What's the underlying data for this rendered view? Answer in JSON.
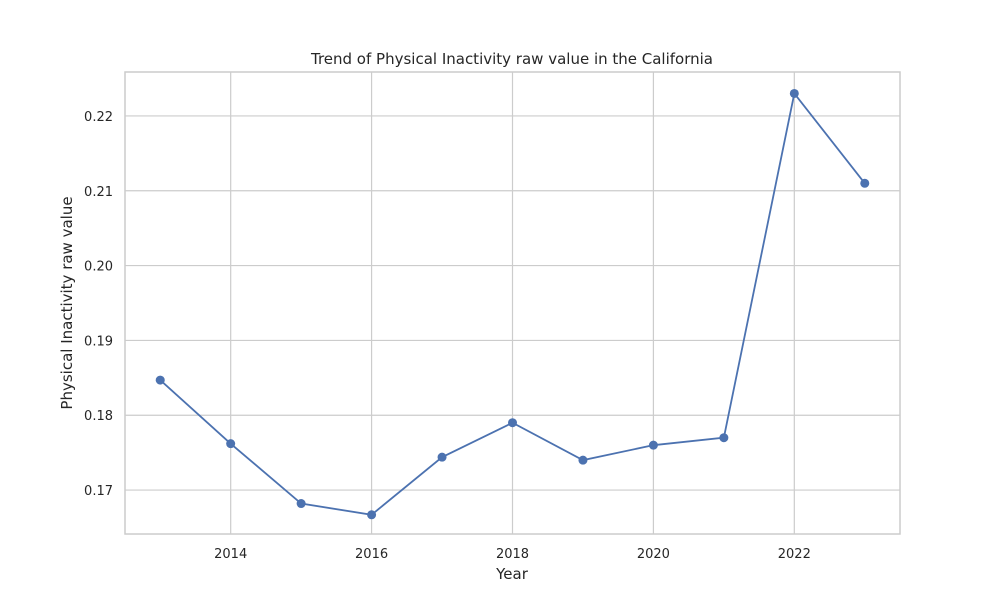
{
  "chart_data": {
    "type": "line",
    "title": "Trend of Physical Inactivity raw value in the California",
    "xlabel": "Year",
    "ylabel": "Physical Inactivity raw value",
    "x": [
      2013,
      2014,
      2015,
      2016,
      2017,
      2018,
      2019,
      2020,
      2021,
      2022,
      2023
    ],
    "series": [
      {
        "values": [
          0.1847,
          0.1762,
          0.1682,
          0.1667,
          0.1744,
          0.179,
          0.174,
          0.176,
          0.177,
          0.223,
          0.211
        ]
      }
    ],
    "xlim": [
      2012.5,
      2023.5
    ],
    "ylim": [
      0.16413,
      0.22587
    ],
    "xticks": [
      2014,
      2016,
      2018,
      2020,
      2022
    ],
    "yticks": [
      0.17,
      0.18,
      0.19,
      0.2,
      0.21,
      0.22
    ],
    "ytick_labels": [
      "0.17",
      "0.18",
      "0.19",
      "0.20",
      "0.21",
      "0.22"
    ],
    "grid": true,
    "colors": {
      "series": "#4c72b0",
      "grid": "#cccccc",
      "text": "#262626"
    }
  }
}
